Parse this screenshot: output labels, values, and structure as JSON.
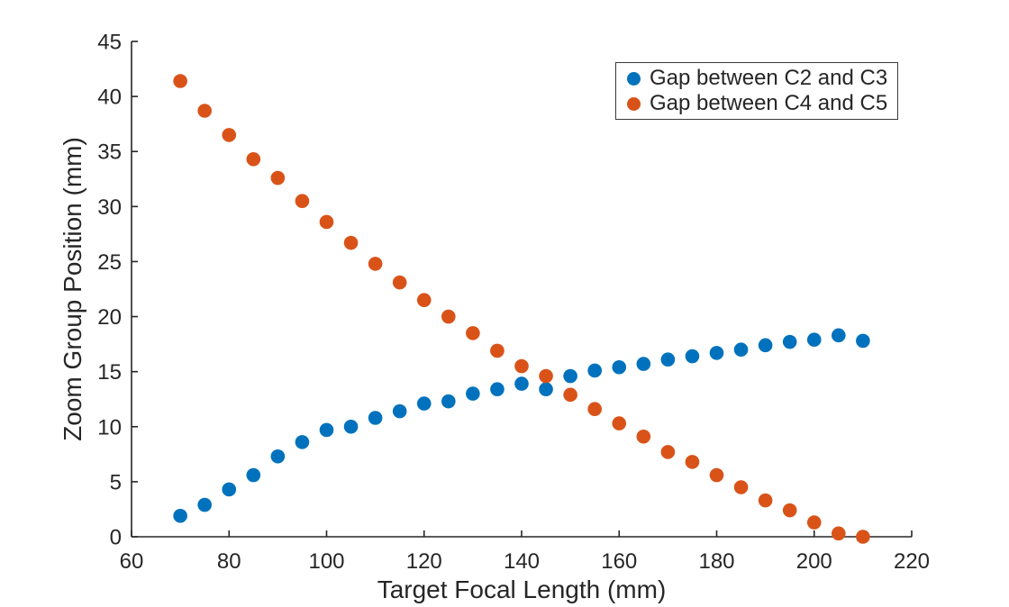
{
  "chart_data": {
    "type": "scatter",
    "title": "",
    "xlabel": "Target Focal Length (mm)",
    "ylabel": "Zoom Group Position (mm)",
    "xlim": [
      60,
      220
    ],
    "ylim": [
      0,
      45
    ],
    "xticks": [
      60,
      80,
      100,
      120,
      140,
      160,
      180,
      200,
      220
    ],
    "yticks": [
      0,
      5,
      10,
      15,
      20,
      25,
      30,
      35,
      40,
      45
    ],
    "grid": false,
    "legend_position": "top-right",
    "axis_color": "#262626",
    "x": [
      70,
      75,
      80,
      85,
      90,
      95,
      100,
      105,
      110,
      115,
      120,
      125,
      130,
      135,
      140,
      145,
      150,
      155,
      160,
      165,
      170,
      175,
      180,
      185,
      190,
      195,
      200,
      205,
      210
    ],
    "series": [
      {
        "id": "gap-c2-c3",
        "name": "Gap between C2 and C3",
        "color": "#0072BD",
        "values": [
          1.9,
          2.9,
          4.3,
          5.6,
          7.3,
          8.6,
          9.7,
          10.0,
          10.8,
          11.4,
          12.1,
          12.3,
          13.0,
          13.4,
          13.9,
          13.4,
          14.6,
          15.1,
          15.4,
          15.7,
          16.1,
          16.4,
          16.7,
          17.0,
          17.4,
          17.7,
          17.9,
          18.3,
          17.8
        ]
      },
      {
        "id": "gap-c4-c5",
        "name": "Gap between C4 and C5",
        "color": "#D95319",
        "values": [
          41.4,
          38.7,
          36.5,
          34.3,
          32.6,
          30.5,
          28.6,
          26.7,
          24.8,
          23.1,
          21.5,
          20.0,
          18.5,
          16.9,
          15.5,
          14.6,
          12.9,
          11.6,
          10.3,
          9.1,
          7.7,
          6.8,
          5.6,
          4.5,
          3.3,
          2.4,
          1.3,
          0.3,
          0.0
        ]
      }
    ]
  }
}
